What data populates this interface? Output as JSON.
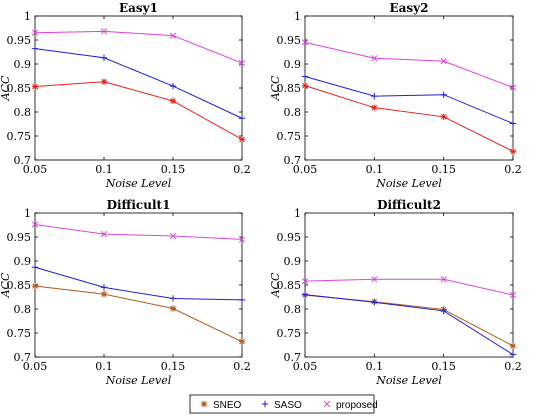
{
  "chart_data": [
    {
      "type": "line",
      "title": "Easy1",
      "xlabel": "Noise Level",
      "ylabel": "ACC",
      "x": [
        0.05,
        0.1,
        0.15,
        0.2
      ],
      "xticks": [
        "0.05",
        "0.1",
        "0.15",
        "0.2"
      ],
      "yticks": [
        "0.7",
        "0.75",
        "0.8",
        "0.85",
        "0.9",
        "0.95",
        "1"
      ],
      "xlim": [
        0.05,
        0.2
      ],
      "ylim": [
        0.7,
        1.0
      ],
      "series": [
        {
          "name": "SNEO",
          "values": [
            0.853,
            0.863,
            0.823,
            0.743
          ]
        },
        {
          "name": "SASO",
          "values": [
            0.932,
            0.913,
            0.854,
            0.787
          ]
        },
        {
          "name": "proposed",
          "values": [
            0.965,
            0.968,
            0.959,
            0.902
          ]
        }
      ]
    },
    {
      "type": "line",
      "title": "Easy2",
      "xlabel": "Noise Level",
      "ylabel": "ACC",
      "x": [
        0.05,
        0.1,
        0.15,
        0.2
      ],
      "xticks": [
        "0.05",
        "0.1",
        "0.15",
        "0.2"
      ],
      "yticks": [
        "0.7",
        "0.75",
        "0.8",
        "0.85",
        "0.9",
        "0.95",
        "1"
      ],
      "xlim": [
        0.05,
        0.2
      ],
      "ylim": [
        0.7,
        1.0
      ],
      "series": [
        {
          "name": "SNEO",
          "values": [
            0.855,
            0.809,
            0.79,
            0.718
          ]
        },
        {
          "name": "SASO",
          "values": [
            0.874,
            0.833,
            0.836,
            0.776
          ]
        },
        {
          "name": "proposed",
          "values": [
            0.945,
            0.912,
            0.906,
            0.851
          ]
        }
      ]
    },
    {
      "type": "line",
      "title": "Difficult1",
      "xlabel": "Noise Level",
      "ylabel": "ACC",
      "x": [
        0.05,
        0.1,
        0.15,
        0.2
      ],
      "xticks": [
        "0.05",
        "0.1",
        "0.15",
        "0.2"
      ],
      "yticks": [
        "0.7",
        "0.75",
        "0.8",
        "0.85",
        "0.9",
        "0.95",
        "1"
      ],
      "xlim": [
        0.05,
        0.2
      ],
      "ylim": [
        0.7,
        1.0
      ],
      "series": [
        {
          "name": "SNEO",
          "values": [
            0.848,
            0.831,
            0.801,
            0.732
          ]
        },
        {
          "name": "SASO",
          "values": [
            0.887,
            0.845,
            0.822,
            0.819
          ]
        },
        {
          "name": "proposed",
          "values": [
            0.976,
            0.956,
            0.952,
            0.945
          ]
        }
      ]
    },
    {
      "type": "line",
      "title": "Difficult2",
      "xlabel": "Noise Level",
      "ylabel": "ACC",
      "x": [
        0.05,
        0.1,
        0.15,
        0.2
      ],
      "xticks": [
        "0.05",
        "0.1",
        "0.15",
        "0.2"
      ],
      "yticks": [
        "0.7",
        "0.75",
        "0.8",
        "0.85",
        "0.9",
        "0.95",
        "1"
      ],
      "xlim": [
        0.05,
        0.2
      ],
      "ylim": [
        0.7,
        1.0
      ],
      "series": [
        {
          "name": "SNEO",
          "values": [
            0.829,
            0.815,
            0.799,
            0.723
          ]
        },
        {
          "name": "SASO",
          "values": [
            0.83,
            0.814,
            0.796,
            0.705
          ]
        },
        {
          "name": "proposed",
          "values": [
            0.858,
            0.862,
            0.862,
            0.829
          ]
        }
      ]
    }
  ],
  "legend": {
    "position": "bottom-center",
    "entries": [
      {
        "name": "SNEO",
        "marker": "asterisk"
      },
      {
        "name": "SASO",
        "marker": "plus"
      },
      {
        "name": "proposed",
        "marker": "cross"
      }
    ]
  },
  "colors": {
    "panel_series": [
      [
        "#e8211e",
        "#1f1fd6",
        "#e040e0"
      ],
      [
        "#e8211e",
        "#1f1fd6",
        "#e040e0"
      ],
      [
        "#b35a1f",
        "#1f1fd6",
        "#d84ad8"
      ],
      [
        "#b35a1f",
        "#1f1fd6",
        "#d84ad8"
      ]
    ],
    "legend": [
      "#b35a1f",
      "#1f1fd6",
      "#d84ad8"
    ]
  }
}
